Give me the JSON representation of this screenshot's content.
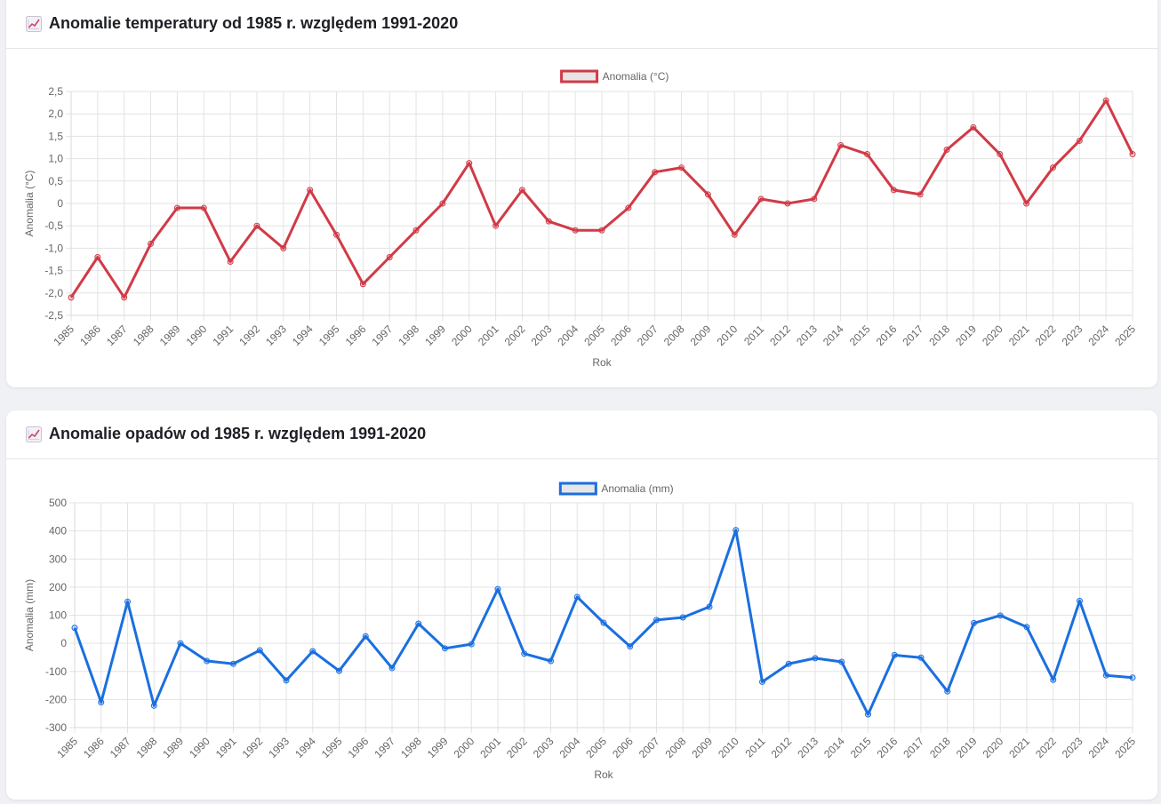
{
  "charts": [
    {
      "id": "temp",
      "title": "Anomalie temperatury od 1985 r. względem 1991-2020",
      "icon": "chart-increasing-icon",
      "chart_data": {
        "type": "line",
        "title": "Anomalie temperatury od 1985 r. względem 1991-2020",
        "xlabel": "Rok",
        "ylabel": "Anomalia (°C)",
        "ylim": [
          -2.5,
          2.5
        ],
        "yticks": [
          2.5,
          2.0,
          1.5,
          1.0,
          0.5,
          0,
          -0.5,
          -1.0,
          -1.5,
          -2.0,
          -2.5
        ],
        "ytick_labels": [
          "2,5",
          "2,0",
          "1,5",
          "1,0",
          "0,5",
          "0",
          "-0,5",
          "-1,0",
          "-1,5",
          "-2,0",
          "-2,5"
        ],
        "grid": true,
        "legend_position": "top-center",
        "x": [
          "1985",
          "1986",
          "1987",
          "1988",
          "1989",
          "1990",
          "1991",
          "1992",
          "1993",
          "1994",
          "1995",
          "1996",
          "1997",
          "1998",
          "1999",
          "2000",
          "2001",
          "2002",
          "2003",
          "2004",
          "2005",
          "2006",
          "2007",
          "2008",
          "2009",
          "2010",
          "2011",
          "2012",
          "2013",
          "2014",
          "2015",
          "2016",
          "2017",
          "2018",
          "2019",
          "2020",
          "2021",
          "2022",
          "2023",
          "2024",
          "2025"
        ],
        "series": [
          {
            "name": "Anomalia (°C)",
            "color": "#d13a47",
            "values": [
              -2.1,
              -1.2,
              -2.1,
              -0.9,
              -0.1,
              -0.1,
              -1.3,
              -0.5,
              -1.0,
              0.3,
              -0.7,
              -1.8,
              -1.2,
              -0.6,
              0.0,
              0.9,
              -0.5,
              0.3,
              -0.4,
              -0.6,
              -0.6,
              -0.1,
              0.7,
              0.8,
              0.2,
              -0.7,
              0.1,
              0.0,
              0.1,
              1.3,
              1.1,
              0.3,
              0.2,
              1.2,
              1.7,
              1.1,
              0.0,
              0.8,
              1.4,
              2.3,
              1.1
            ]
          }
        ]
      }
    },
    {
      "id": "precip",
      "title": "Anomalie opadów od 1985 r. względem 1991-2020",
      "icon": "chart-increasing-icon",
      "chart_data": {
        "type": "line",
        "title": "Anomalie opadów od 1985 r. względem 1991-2020",
        "xlabel": "Rok",
        "ylabel": "Anomalia (mm)",
        "ylim": [
          -300,
          500
        ],
        "yticks": [
          500,
          400,
          300,
          200,
          100,
          0,
          -100,
          -200,
          -300
        ],
        "ytick_labels": [
          "500",
          "400",
          "300",
          "200",
          "100",
          "0",
          "-100",
          "-200",
          "-300"
        ],
        "grid": true,
        "legend_position": "top-center",
        "x": [
          "1985",
          "1986",
          "1987",
          "1988",
          "1989",
          "1990",
          "1991",
          "1992",
          "1993",
          "1994",
          "1995",
          "1996",
          "1997",
          "1998",
          "1999",
          "2000",
          "2001",
          "2002",
          "2003",
          "2004",
          "2005",
          "2006",
          "2007",
          "2008",
          "2009",
          "2010",
          "2011",
          "2012",
          "2013",
          "2014",
          "2015",
          "2016",
          "2017",
          "2018",
          "2019",
          "2020",
          "2021",
          "2022",
          "2023",
          "2024",
          "2025"
        ],
        "series": [
          {
            "name": "Anomalia (mm)",
            "color": "#1a6fe0",
            "values": [
              55,
              -210,
              148,
              -222,
              0,
              -63,
              -73,
              -25,
              -132,
              -28,
              -98,
              25,
              -88,
              70,
              -18,
              -3,
              193,
              -37,
              -63,
              165,
              73,
              -11,
              83,
              92,
              130,
              403,
              -137,
              -73,
              -53,
              -66,
              -253,
              -42,
              -51,
              -171,
              72,
              99,
              58,
              -130,
              151,
              -114,
              -122
            ]
          }
        ]
      }
    }
  ]
}
